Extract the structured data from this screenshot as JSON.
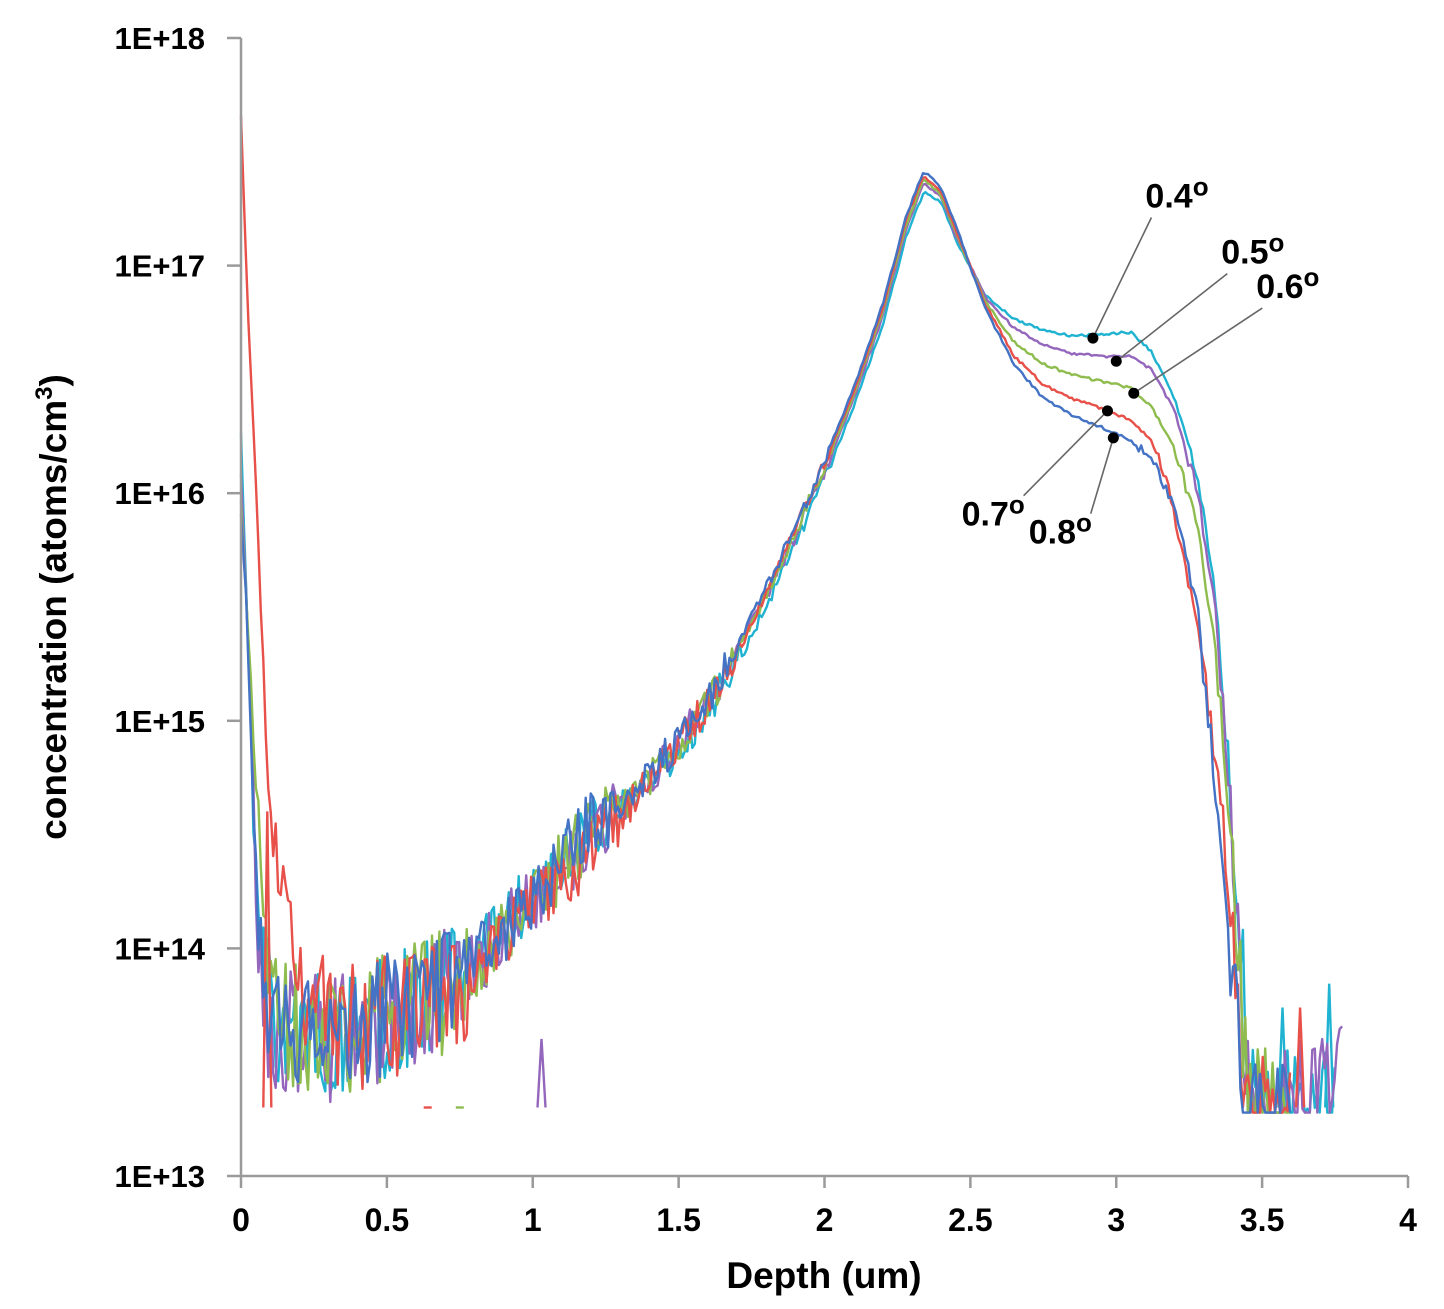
{
  "chart_data": {
    "type": "line",
    "title": "",
    "xlabel": "Depth (um)",
    "ylabel": "concentration (atoms/cm",
    "ylabel_sup": "3",
    "ylabel_end": ")",
    "y_scale": "log",
    "xlim": [
      0,
      4
    ],
    "ylim": [
      10000000000000.0,
      1e+18
    ],
    "x_ticks": [
      {
        "value": 0,
        "label": "0"
      },
      {
        "value": 0.5,
        "label": "0.5"
      },
      {
        "value": 1,
        "label": "1"
      },
      {
        "value": 1.5,
        "label": "1.5"
      },
      {
        "value": 2,
        "label": "2"
      },
      {
        "value": 2.5,
        "label": "2.5"
      },
      {
        "value": 3,
        "label": "3"
      },
      {
        "value": 3.5,
        "label": "3.5"
      },
      {
        "value": 4,
        "label": "4"
      }
    ],
    "y_ticks": [
      {
        "value": 10000000000000.0,
        "label": "1E+13"
      },
      {
        "value": 100000000000000.0,
        "label": "1E+14"
      },
      {
        "value": 1000000000000000.0,
        "label": "1E+15"
      },
      {
        "value": 1e+16,
        "label": "1E+16"
      },
      {
        "value": 1e+17,
        "label": "1E+17"
      },
      {
        "value": 1e+18,
        "label": "1E+18"
      }
    ],
    "grid": false,
    "legend": "none",
    "series": [
      {
        "name": "0.4°",
        "color": "#1fb3d1",
        "noise_seed": 5,
        "points": [
          [
            0,
            1.8e+16
          ],
          [
            0.02,
            3000000000000000.0
          ],
          [
            0.05,
            200000000000000.0
          ],
          [
            0.1,
            50000000000000.0
          ],
          [
            0.3,
            40000000000000.0
          ],
          [
            0.5,
            50000000000000.0
          ],
          [
            0.7,
            70000000000000.0
          ],
          [
            0.9,
            120000000000000.0
          ],
          [
            1.0,
            170000000000000.0
          ],
          [
            1.1,
            230000000000000.0
          ],
          [
            1.2,
            320000000000000.0
          ],
          [
            1.4,
            550000000000000.0
          ],
          [
            1.5,
            750000000000000.0
          ],
          [
            1.6,
            1100000000000000.0
          ],
          [
            1.7,
            1800000000000000.0
          ],
          [
            1.8,
            3200000000000000.0
          ],
          [
            1.9,
            6000000000000000.0
          ],
          [
            2.0,
            1.15e+16
          ],
          [
            2.1,
            2.4e+16
          ],
          [
            2.2,
            5.5e+16
          ],
          [
            2.28,
            1.35e+17
          ],
          [
            2.34,
            2.1e+17
          ],
          [
            2.4,
            1.9e+17
          ],
          [
            2.45,
            1.3e+17
          ],
          [
            2.55,
            7.5e+16
          ],
          [
            2.65,
            5.8e+16
          ],
          [
            2.75,
            5.2e+16
          ],
          [
            2.85,
            4.9e+16
          ],
          [
            2.95,
            5e+16
          ],
          [
            3.05,
            5.1e+16
          ],
          [
            3.12,
            4.2e+16
          ],
          [
            3.2,
            2.6e+16
          ],
          [
            3.28,
            1.2e+16
          ],
          [
            3.34,
            3500000000000000.0
          ],
          [
            3.38,
            800000000000000.0
          ],
          [
            3.41,
            180000000000000.0
          ],
          [
            3.44,
            50000000000000.0
          ],
          [
            3.46,
            20000000000000.0
          ],
          [
            3.6,
            20000000000000.0
          ],
          [
            3.75,
            20000000000000.0
          ]
        ],
        "spikes": [
          [
            3.73,
            70000000000000.0
          ],
          [
            3.57,
            55000000000000.0
          ]
        ],
        "annotation": {
          "label": "0.4",
          "degree": "o",
          "marker_x": 2.92,
          "marker_y": 4.8e+16,
          "text_x": 3.1,
          "text_y": 1.8e+17
        }
      },
      {
        "name": "0.5°",
        "color": "#9467bd",
        "noise_seed": 4,
        "points": [
          [
            0,
            1.2e+16
          ],
          [
            0.03,
            1500000000000000.0
          ],
          [
            0.06,
            100000000000000.0
          ],
          [
            0.1,
            45000000000000.0
          ],
          [
            0.3,
            40000000000000.0
          ],
          [
            0.5,
            50000000000000.0
          ],
          [
            0.7,
            65000000000000.0
          ],
          [
            0.9,
            115000000000000.0
          ],
          [
            1.0,
            170000000000000.0
          ],
          [
            1.1,
            230000000000000.0
          ],
          [
            1.2,
            320000000000000.0
          ],
          [
            1.4,
            560000000000000.0
          ],
          [
            1.5,
            800000000000000.0
          ],
          [
            1.6,
            1200000000000000.0
          ],
          [
            1.7,
            2000000000000000.0
          ],
          [
            1.8,
            3500000000000000.0
          ],
          [
            1.9,
            6500000000000000.0
          ],
          [
            2.0,
            1.25e+16
          ],
          [
            2.1,
            2.6e+16
          ],
          [
            2.2,
            6e+16
          ],
          [
            2.28,
            1.45e+17
          ],
          [
            2.34,
            2.3e+17
          ],
          [
            2.4,
            2e+17
          ],
          [
            2.45,
            1.35e+17
          ],
          [
            2.55,
            7.3e+16
          ],
          [
            2.65,
            5.3e+16
          ],
          [
            2.75,
            4.5e+16
          ],
          [
            2.85,
            4.1e+16
          ],
          [
            2.95,
            4e+16
          ],
          [
            3.05,
            4e+16
          ],
          [
            3.12,
            3.5e+16
          ],
          [
            3.2,
            2.3e+16
          ],
          [
            3.28,
            1e+16
          ],
          [
            3.34,
            3000000000000000.0
          ],
          [
            3.38,
            700000000000000.0
          ],
          [
            3.41,
            160000000000000.0
          ],
          [
            3.44,
            45000000000000.0
          ],
          [
            3.46,
            20000000000000.0
          ],
          [
            3.6,
            20000000000000.0
          ],
          [
            3.76,
            25000000000000.0
          ],
          [
            3.78,
            38000000000000.0
          ]
        ],
        "spikes": [
          [
            1.03,
            40000000000000.0
          ]
        ],
        "annotation": {
          "label": "0.5",
          "degree": "o",
          "marker_x": 3.0,
          "marker_y": 3.8e+16,
          "text_x": 3.36,
          "text_y": 1.02e+17
        }
      },
      {
        "name": "0.6°",
        "color": "#8fbc4e",
        "noise_seed": 3,
        "points": [
          [
            0,
            9000000000000000.0
          ],
          [
            0.04,
            1000000000000000.0
          ],
          [
            0.08,
            120000000000000.0
          ],
          [
            0.12,
            50000000000000.0
          ],
          [
            0.3,
            40000000000000.0
          ],
          [
            0.5,
            50000000000000.0
          ],
          [
            0.7,
            65000000000000.0
          ],
          [
            0.9,
            110000000000000.0
          ],
          [
            1.0,
            165000000000000.0
          ],
          [
            1.1,
            230000000000000.0
          ],
          [
            1.2,
            320000000000000.0
          ],
          [
            1.4,
            560000000000000.0
          ],
          [
            1.5,
            800000000000000.0
          ],
          [
            1.6,
            1200000000000000.0
          ],
          [
            1.7,
            2000000000000000.0
          ],
          [
            1.8,
            3600000000000000.0
          ],
          [
            1.9,
            6800000000000000.0
          ],
          [
            2.0,
            1.3e+16
          ],
          [
            2.1,
            2.7e+16
          ],
          [
            2.2,
            6.3e+16
          ],
          [
            2.28,
            1.5e+17
          ],
          [
            2.34,
            2.4e+17
          ],
          [
            2.4,
            2.05e+17
          ],
          [
            2.45,
            1.4e+17
          ],
          [
            2.55,
            7e+16
          ],
          [
            2.65,
            4.6e+16
          ],
          [
            2.75,
            3.7e+16
          ],
          [
            2.85,
            3.3e+16
          ],
          [
            2.95,
            3.1e+16
          ],
          [
            3.05,
            2.9e+16
          ],
          [
            3.12,
            2.4e+16
          ],
          [
            3.2,
            1.6e+16
          ],
          [
            3.28,
            7000000000000000.0
          ],
          [
            3.34,
            2000000000000000.0
          ],
          [
            3.38,
            500000000000000.0
          ],
          [
            3.41,
            130000000000000.0
          ],
          [
            3.44,
            40000000000000.0
          ],
          [
            3.46,
            20000000000000.0
          ],
          [
            3.6,
            20000000000000.0
          ]
        ],
        "spikes": [
          [
            0.75,
            20000000000000.0
          ]
        ],
        "annotation": {
          "label": "0.6",
          "degree": "o",
          "marker_x": 3.06,
          "marker_y": 2.75e+16,
          "text_x": 3.48,
          "text_y": 7.2e+16
        }
      },
      {
        "name": "0.7°",
        "color": "#e8504a",
        "noise_seed": 2,
        "points": [
          [
            0,
            4.5e+17
          ],
          [
            0.02,
            8e+16
          ],
          [
            0.05,
            1.2e+16
          ],
          [
            0.08,
            1300000000000000.0
          ],
          [
            0.1,
            400000000000000.0
          ],
          [
            0.15,
            150000000000000.0
          ],
          [
            0.25,
            50000000000000.0
          ],
          [
            0.4,
            45000000000000.0
          ],
          [
            0.6,
            55000000000000.0
          ],
          [
            0.8,
            80000000000000.0
          ],
          [
            0.95,
            130000000000000.0
          ],
          [
            1.05,
            180000000000000.0
          ],
          [
            1.15,
            240000000000000.0
          ],
          [
            1.3,
            380000000000000.0
          ],
          [
            1.4,
            550000000000000.0
          ],
          [
            1.5,
            800000000000000.0
          ],
          [
            1.6,
            1200000000000000.0
          ],
          [
            1.7,
            2000000000000000.0
          ],
          [
            1.8,
            3700000000000000.0
          ],
          [
            1.9,
            7000000000000000.0
          ],
          [
            2.0,
            1.35e+16
          ],
          [
            2.1,
            2.8e+16
          ],
          [
            2.2,
            6.5e+16
          ],
          [
            2.28,
            1.6e+17
          ],
          [
            2.34,
            2.5e+17
          ],
          [
            2.4,
            2.1e+17
          ],
          [
            2.45,
            1.45e+17
          ],
          [
            2.55,
            6.8e+16
          ],
          [
            2.65,
            4e+16
          ],
          [
            2.75,
            3e+16
          ],
          [
            2.85,
            2.6e+16
          ],
          [
            2.95,
            2.35e+16
          ],
          [
            3.05,
            2.1e+16
          ],
          [
            3.12,
            1.7e+16
          ],
          [
            3.17,
            1.2e+16
          ],
          [
            3.22,
            6000000000000000.0
          ],
          [
            3.28,
            2500000000000000.0
          ],
          [
            3.34,
            700000000000000.0
          ],
          [
            3.38,
            200000000000000.0
          ],
          [
            3.41,
            80000000000000.0
          ],
          [
            3.44,
            30000000000000.0
          ],
          [
            3.46,
            20000000000000.0
          ],
          [
            3.6,
            20000000000000.0
          ]
        ],
        "spikes": [
          [
            0.09,
            400000000000000.0
          ],
          [
            0.64,
            20000000000000.0
          ],
          [
            3.63,
            55000000000000.0
          ]
        ],
        "annotation": {
          "label": "0.7",
          "degree": "o",
          "marker_x": 2.97,
          "marker_y": 2.3e+16,
          "text_x": 2.47,
          "text_y": 7200000000000000.0
        }
      },
      {
        "name": "0.8°",
        "color": "#4472c4",
        "noise_seed": 1,
        "points": [
          [
            0,
            8000000000000000.0
          ],
          [
            0.02,
            3000000000000000.0
          ],
          [
            0.04,
            500000000000000.0
          ],
          [
            0.06,
            120000000000000.0
          ],
          [
            0.1,
            50000000000000.0
          ],
          [
            0.3,
            40000000000000.0
          ],
          [
            0.5,
            50000000000000.0
          ],
          [
            0.7,
            70000000000000.0
          ],
          [
            0.9,
            120000000000000.0
          ],
          [
            1.0,
            170000000000000.0
          ],
          [
            1.1,
            240000000000000.0
          ],
          [
            1.2,
            340000000000000.0
          ],
          [
            1.4,
            580000000000000.0
          ],
          [
            1.5,
            820000000000000.0
          ],
          [
            1.6,
            1250000000000000.0
          ],
          [
            1.7,
            2100000000000000.0
          ],
          [
            1.8,
            3800000000000000.0
          ],
          [
            1.9,
            7200000000000000.0
          ],
          [
            2.0,
            1.4e+16
          ],
          [
            2.1,
            2.9e+16
          ],
          [
            2.2,
            6.8e+16
          ],
          [
            2.28,
            1.65e+17
          ],
          [
            2.34,
            2.6e+17
          ],
          [
            2.4,
            2.2e+17
          ],
          [
            2.45,
            1.5e+17
          ],
          [
            2.55,
            6.5e+16
          ],
          [
            2.65,
            3.7e+16
          ],
          [
            2.75,
            2.6e+16
          ],
          [
            2.85,
            2.2e+16
          ],
          [
            2.95,
            1.95e+16
          ],
          [
            3.05,
            1.7e+16
          ],
          [
            3.12,
            1.4e+16
          ],
          [
            3.2,
            9000000000000000.0
          ],
          [
            3.28,
            3000000000000000.0
          ],
          [
            3.33,
            700000000000000.0
          ],
          [
            3.37,
            200000000000000.0
          ],
          [
            3.4,
            60000000000000.0
          ],
          [
            3.43,
            25000000000000.0
          ],
          [
            3.46,
            20000000000000.0
          ],
          [
            3.6,
            20000000000000.0
          ]
        ],
        "spikes": [],
        "annotation": {
          "label": "0.8",
          "degree": "o",
          "marker_x": 2.99,
          "marker_y": 1.75e+16,
          "text_x": 2.7,
          "text_y": 6000000000000000.0
        }
      }
    ]
  }
}
